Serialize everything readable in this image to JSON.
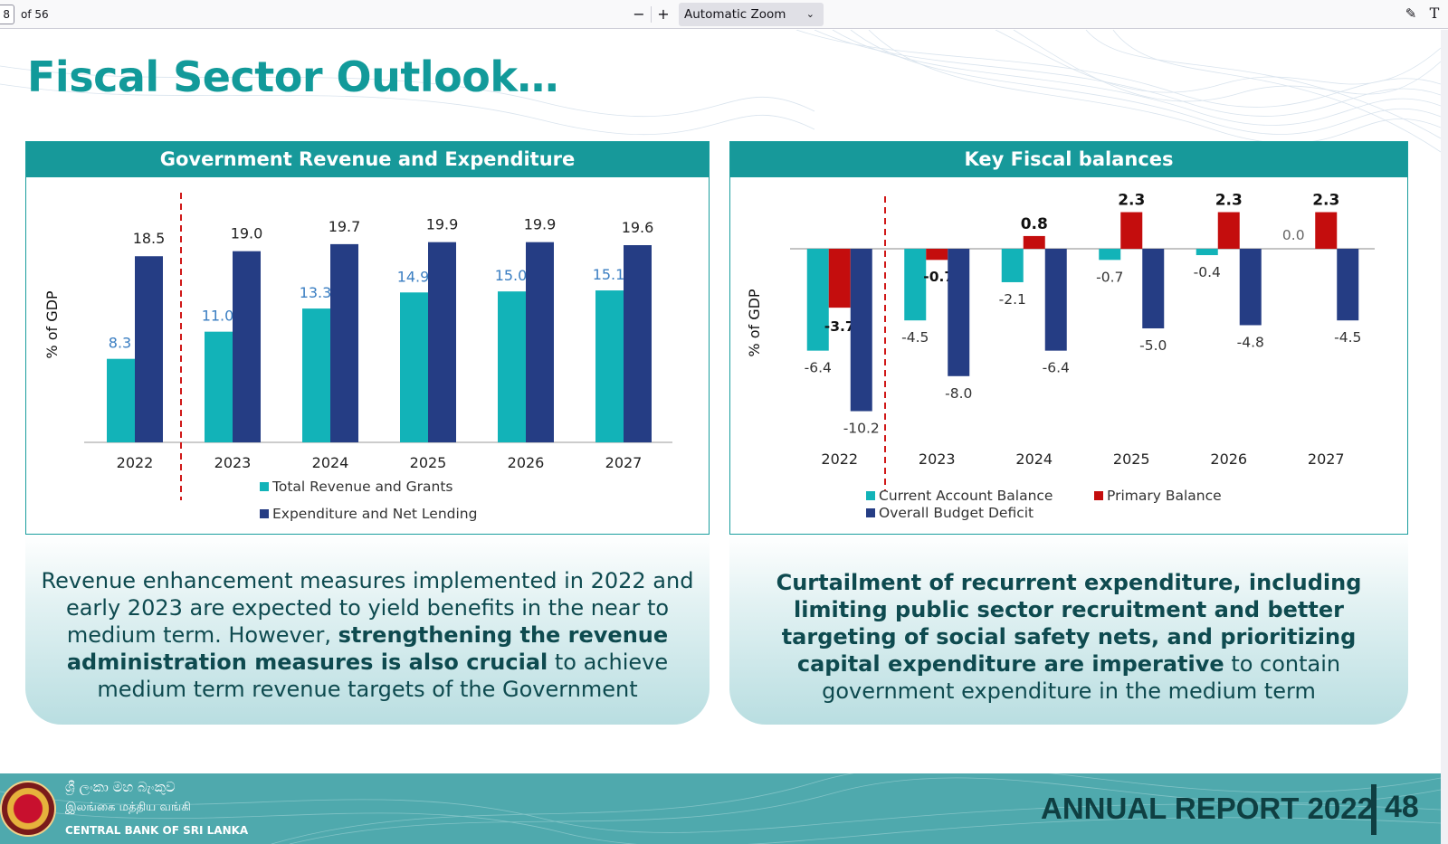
{
  "viewer": {
    "page_current": "8",
    "page_total": "of 56",
    "zoom_out": "−",
    "zoom_in": "+",
    "zoom_value": "Automatic Zoom",
    "draw_icon": "✎",
    "text_icon": "T"
  },
  "slide": {
    "title": "Fiscal Sector Outlook…",
    "footer": {
      "bank_sinhala": "ශ්‍රී ලංකා මහ බැංකුව",
      "bank_tamil": "இலங்கை மத்திய வங்கி",
      "bank_english": "CENTRAL BANK OF SRI LANKA",
      "report": "ANNUAL REPORT 2022",
      "page": "48"
    }
  },
  "panels": {
    "left": {
      "heading": "Government Revenue and Expenditure",
      "note_pre": "Revenue enhancement measures implemented in 2022 and early 2023 are expected to yield benefits in the near to medium term. However, ",
      "note_bold": "strengthening the revenue administration measures is also crucial",
      "note_post": " to achieve medium term revenue targets of the Government"
    },
    "right": {
      "heading": "Key Fiscal balances",
      "note_bold": "Curtailment of recurrent expenditure, including limiting public sector recruitment and better targeting of social safety nets, and prioritizing capital expenditure are imperative",
      "note_post": " to contain government expenditure in the medium term"
    }
  },
  "chart_data": [
    {
      "type": "bar",
      "title": "Government Revenue and Expenditure",
      "ylabel": "% of GDP",
      "categories": [
        "2022",
        "2023",
        "2024",
        "2025",
        "2026",
        "2027"
      ],
      "series": [
        {
          "name": "Total Revenue and Grants",
          "values": [
            8.3,
            11.0,
            13.3,
            14.9,
            15.0,
            15.1
          ],
          "color": "#12b3b8",
          "label_color": "#3a7ec2"
        },
        {
          "name": "Expenditure and Net Lending",
          "values": [
            18.5,
            19.0,
            19.7,
            19.9,
            19.9,
            19.6
          ],
          "color": "#253d84",
          "label_color": "#222222"
        }
      ],
      "ylim": [
        0,
        20.5
      ],
      "legend_placement": "bottom",
      "projection_divider_after": "2022"
    },
    {
      "type": "bar",
      "title": "Key Fiscal balances",
      "ylabel": "% of GDP",
      "categories": [
        "2022",
        "2023",
        "2024",
        "2025",
        "2026",
        "2027"
      ],
      "series": [
        {
          "name": "Current Account Balance",
          "values": [
            -6.4,
            -4.5,
            -2.1,
            -0.7,
            -0.4,
            null
          ],
          "color": "#12b3b8"
        },
        {
          "name": "Primary Balance",
          "values": [
            -3.7,
            -0.7,
            0.8,
            2.3,
            2.3,
            2.3
          ],
          "color": "#c40d0d"
        },
        {
          "name": "Overall Budget Deficit",
          "values": [
            -10.2,
            -8.0,
            -6.4,
            -5.0,
            -4.8,
            -4.5
          ],
          "color": "#253d84"
        }
      ],
      "labels": [
        [
          "-6.4",
          "-4.5",
          "-2.1",
          "-0.7",
          "-0.4",
          "0.0"
        ],
        [
          "-3.7",
          "-0.7",
          "0.8",
          "2.3",
          "2.3",
          "2.3"
        ],
        [
          "-10.2",
          "-8.0",
          "-6.4",
          "-5.0",
          "-4.8",
          "-4.5"
        ]
      ],
      "ylim": [
        -11,
        2.5
      ],
      "legend_placement": "bottom",
      "projection_divider_after": "2022"
    }
  ],
  "colors": {
    "accent": "#17999a",
    "title": "#129a9a",
    "dark_text": "#0f3f42"
  }
}
